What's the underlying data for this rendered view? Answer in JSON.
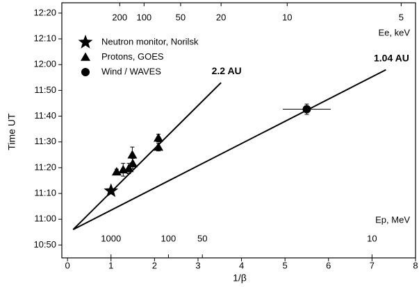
{
  "chart_data": {
    "type": "scatter",
    "x_label": "1/β",
    "y_label": "Time UT",
    "xlim": [
      -0.13,
      8.0
    ],
    "xticks": [
      0,
      1,
      2,
      3,
      4,
      5,
      6,
      7,
      8
    ],
    "ylim": [
      645,
      744
    ],
    "yticks": [
      {
        "value": 650,
        "label": "10:50"
      },
      {
        "value": 660,
        "label": "11:00"
      },
      {
        "value": 670,
        "label": "11:10"
      },
      {
        "value": 680,
        "label": "11:20"
      },
      {
        "value": 690,
        "label": "11:30"
      },
      {
        "value": 700,
        "label": "11:40"
      },
      {
        "value": 710,
        "label": "11:50"
      },
      {
        "value": 720,
        "label": "12:00"
      },
      {
        "value": 730,
        "label": "12:10"
      },
      {
        "value": 740,
        "label": "12:20"
      }
    ],
    "electron_axis": {
      "label": "Ee, keV",
      "ticks": [
        {
          "energy": 200,
          "x": 1.2
        },
        {
          "energy": 100,
          "x": 1.76
        },
        {
          "energy": 50,
          "x": 2.6
        },
        {
          "energy": 20,
          "x": 3.53
        },
        {
          "energy": 10,
          "x": 5.05
        },
        {
          "energy": 5,
          "x": 7.67
        }
      ]
    },
    "proton_axis": {
      "label": "Ep, MeV",
      "ticks": [
        {
          "energy": 1000,
          "x": 1.0
        },
        {
          "energy": 100,
          "x": 2.32
        },
        {
          "energy": 50,
          "x": 3.1
        },
        {
          "energy": 10,
          "x": 7.0
        }
      ]
    },
    "series": [
      {
        "name": "Neutron monitor, Norilsk",
        "marker": "star",
        "color": "#000000",
        "x": [
          1.0
        ],
        "values": [
          671
        ]
      },
      {
        "name": "Protons, GOES",
        "marker": "triangle",
        "color": "#000000",
        "x": [
          1.13,
          1.28,
          1.41,
          1.49,
          1.5,
          2.09,
          2.09
        ],
        "values": [
          678.4,
          679.2,
          679.7,
          685,
          681.6,
          691.5,
          688
        ],
        "errors": [
          1,
          2.5,
          2,
          3,
          2,
          1.5,
          1.5
        ]
      },
      {
        "name": "Wind / WAVES",
        "marker": "circle",
        "color": "#000000",
        "x": [
          5.5
        ],
        "values": [
          702.7
        ],
        "x_errors": [
          0.55
        ],
        "errors": [
          2
        ]
      }
    ],
    "lines": [
      {
        "label": "2.2 AU",
        "x": [
          0.13,
          3.53
        ],
        "values": [
          656,
          713
        ]
      },
      {
        "label": "1.04 AU",
        "x": [
          0.13,
          7.32
        ],
        "values": [
          656,
          718
        ]
      }
    ]
  }
}
